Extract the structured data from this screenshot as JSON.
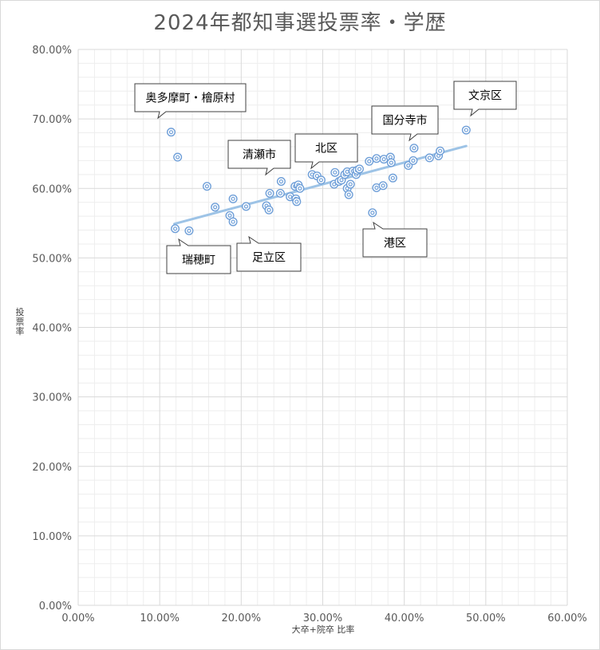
{
  "chart_data": {
    "type": "scatter",
    "title": "2024年都知事選投票率・学歴",
    "xlabel": "大卒+院卒 比率",
    "ylabel": "投票率",
    "xlim": [
      0,
      0.6
    ],
    "ylim": [
      0,
      0.8
    ],
    "x_ticks": [
      "0.00%",
      "10.00%",
      "20.00%",
      "30.00%",
      "40.00%",
      "50.00%",
      "60.00%"
    ],
    "y_ticks": [
      "0.00%",
      "10.00%",
      "20.00%",
      "30.00%",
      "40.00%",
      "50.00%",
      "60.00%",
      "70.00%",
      "80.00%"
    ],
    "x_tick_values": [
      0,
      0.1,
      0.2,
      0.3,
      0.4,
      0.5,
      0.6
    ],
    "y_tick_values": [
      0,
      0.1,
      0.2,
      0.3,
      0.4,
      0.5,
      0.6,
      0.7,
      0.8
    ],
    "grid": true,
    "marker_color": "#6f9fd8",
    "trendline": {
      "color": "#9dc3e6",
      "from": [
        0.118,
        0.549
      ],
      "to": [
        0.476,
        0.661
      ]
    },
    "points": [
      [
        0.114,
        0.681
      ],
      [
        0.122,
        0.645
      ],
      [
        0.119,
        0.542
      ],
      [
        0.136,
        0.539
      ],
      [
        0.158,
        0.603
      ],
      [
        0.168,
        0.573
      ],
      [
        0.186,
        0.561
      ],
      [
        0.19,
        0.552
      ],
      [
        0.19,
        0.585
      ],
      [
        0.206,
        0.574
      ],
      [
        0.231,
        0.575
      ],
      [
        0.234,
        0.569
      ],
      [
        0.235,
        0.593
      ],
      [
        0.248,
        0.593
      ],
      [
        0.249,
        0.61
      ],
      [
        0.26,
        0.588
      ],
      [
        0.266,
        0.603
      ],
      [
        0.267,
        0.585
      ],
      [
        0.268,
        0.581
      ],
      [
        0.27,
        0.605
      ],
      [
        0.272,
        0.6
      ],
      [
        0.287,
        0.62
      ],
      [
        0.293,
        0.618
      ],
      [
        0.298,
        0.612
      ],
      [
        0.314,
        0.606
      ],
      [
        0.315,
        0.623
      ],
      [
        0.32,
        0.61
      ],
      [
        0.323,
        0.612
      ],
      [
        0.327,
        0.62
      ],
      [
        0.33,
        0.6
      ],
      [
        0.33,
        0.624
      ],
      [
        0.332,
        0.591
      ],
      [
        0.334,
        0.606
      ],
      [
        0.337,
        0.625
      ],
      [
        0.341,
        0.62
      ],
      [
        0.342,
        0.626
      ],
      [
        0.345,
        0.628
      ],
      [
        0.357,
        0.639
      ],
      [
        0.361,
        0.565
      ],
      [
        0.366,
        0.601
      ],
      [
        0.366,
        0.643
      ],
      [
        0.374,
        0.604
      ],
      [
        0.375,
        0.642
      ],
      [
        0.383,
        0.645
      ],
      [
        0.384,
        0.637
      ],
      [
        0.386,
        0.615
      ],
      [
        0.405,
        0.633
      ],
      [
        0.411,
        0.64
      ],
      [
        0.412,
        0.658
      ],
      [
        0.431,
        0.644
      ],
      [
        0.442,
        0.647
      ],
      [
        0.444,
        0.654
      ],
      [
        0.476,
        0.684
      ]
    ],
    "annotations": [
      {
        "label": "奥多摩町・檜原村",
        "point": [
          0.114,
          0.681
        ]
      },
      {
        "label": "文京区",
        "point": [
          0.476,
          0.684
        ]
      },
      {
        "label": "国分寺市",
        "point": [
          0.412,
          0.658
        ]
      },
      {
        "label": "清瀬市",
        "point": [
          0.249,
          0.61
        ]
      },
      {
        "label": "北区",
        "point": [
          0.293,
          0.618
        ]
      },
      {
        "label": "瑞穂町",
        "point": [
          0.119,
          0.542
        ]
      },
      {
        "label": "足立区",
        "point": [
          0.206,
          0.574
        ]
      },
      {
        "label": "港区",
        "point": [
          0.361,
          0.565
        ]
      }
    ]
  }
}
